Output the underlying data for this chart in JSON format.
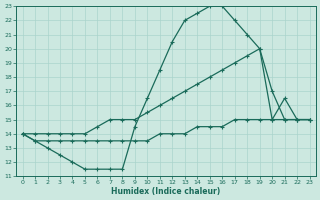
{
  "xlabel": "Humidex (Indice chaleur)",
  "bg_color": "#cce8e0",
  "line_color": "#1a6b5a",
  "grid_color": "#aad4cc",
  "xlim": [
    -0.5,
    23.5
  ],
  "ylim": [
    11,
    23
  ],
  "xticks": [
    0,
    1,
    2,
    3,
    4,
    5,
    6,
    7,
    8,
    9,
    10,
    11,
    12,
    13,
    14,
    15,
    16,
    17,
    18,
    19,
    20,
    21,
    22,
    23
  ],
  "yticks": [
    11,
    12,
    13,
    14,
    15,
    16,
    17,
    18,
    19,
    20,
    21,
    22,
    23
  ],
  "curve1_x": [
    0,
    1,
    2,
    3,
    4,
    5,
    6,
    7,
    8,
    9,
    10,
    11,
    12,
    13,
    14,
    15,
    16,
    17,
    18,
    19,
    20,
    21,
    22,
    23
  ],
  "curve1_y": [
    14,
    13.5,
    13,
    12.5,
    12,
    11.5,
    11.5,
    11.5,
    11.5,
    14.5,
    16.5,
    18.5,
    20.5,
    22,
    22.5,
    23,
    23,
    22,
    21,
    20,
    15,
    16.5,
    15,
    15
  ],
  "curve2_x": [
    0,
    1,
    2,
    3,
    4,
    5,
    6,
    7,
    8,
    9,
    10,
    11,
    12,
    13,
    14,
    15,
    16,
    17,
    18,
    19,
    20,
    21,
    22,
    23
  ],
  "curve2_y": [
    14,
    14,
    14,
    14,
    14,
    14,
    14.5,
    15,
    15,
    15,
    15.5,
    16,
    16.5,
    17,
    17.5,
    18,
    18.5,
    19,
    19.5,
    20,
    17,
    15,
    15,
    15
  ],
  "curve3_x": [
    0,
    1,
    2,
    3,
    4,
    5,
    6,
    7,
    8,
    9,
    10,
    11,
    12,
    13,
    14,
    15,
    16,
    17,
    18,
    19,
    20,
    21,
    22,
    23
  ],
  "curve3_y": [
    14,
    13.5,
    13.5,
    13.5,
    13.5,
    13.5,
    13.5,
    13.5,
    13.5,
    13.5,
    13.5,
    14,
    14,
    14,
    14.5,
    14.5,
    14.5,
    15,
    15,
    15,
    15,
    15,
    15,
    15
  ]
}
